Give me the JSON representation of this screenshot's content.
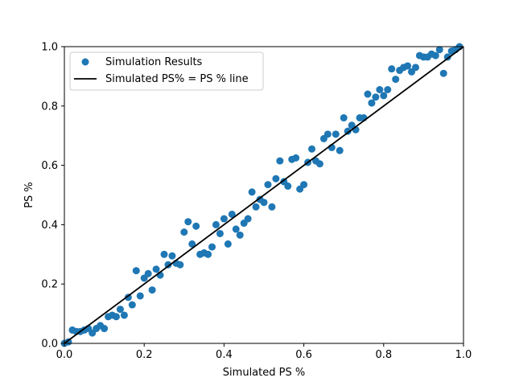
{
  "chart_data": {
    "type": "scatter",
    "title": "",
    "xlabel": "Simulated PS %",
    "ylabel": "PS %",
    "xlim": [
      0,
      1
    ],
    "ylim": [
      0,
      1
    ],
    "xticks": [
      "0.0",
      "0.2",
      "0.4",
      "0.6",
      "0.8",
      "1.0"
    ],
    "yticks": [
      "0.0",
      "0.2",
      "0.4",
      "0.6",
      "0.8",
      "1.0"
    ],
    "grid": false,
    "legend_position": "top-left",
    "colors": {
      "points": "#1f77b4",
      "line": "#000000"
    },
    "series": [
      {
        "name": "Simulation Results",
        "kind": "scatter",
        "points": [
          [
            0.0,
            0.0
          ],
          [
            0.01,
            0.005
          ],
          [
            0.02,
            0.045
          ],
          [
            0.03,
            0.04
          ],
          [
            0.04,
            0.04
          ],
          [
            0.05,
            0.045
          ],
          [
            0.06,
            0.05
          ],
          [
            0.07,
            0.035
          ],
          [
            0.08,
            0.05
          ],
          [
            0.09,
            0.06
          ],
          [
            0.1,
            0.05
          ],
          [
            0.11,
            0.09
          ],
          [
            0.12,
            0.095
          ],
          [
            0.13,
            0.09
          ],
          [
            0.14,
            0.115
          ],
          [
            0.15,
            0.095
          ],
          [
            0.16,
            0.155
          ],
          [
            0.17,
            0.13
          ],
          [
            0.18,
            0.245
          ],
          [
            0.19,
            0.16
          ],
          [
            0.2,
            0.22
          ],
          [
            0.21,
            0.235
          ],
          [
            0.22,
            0.18
          ],
          [
            0.23,
            0.25
          ],
          [
            0.24,
            0.23
          ],
          [
            0.25,
            0.3
          ],
          [
            0.26,
            0.265
          ],
          [
            0.27,
            0.295
          ],
          [
            0.28,
            0.27
          ],
          [
            0.29,
            0.265
          ],
          [
            0.3,
            0.375
          ],
          [
            0.31,
            0.41
          ],
          [
            0.32,
            0.335
          ],
          [
            0.33,
            0.395
          ],
          [
            0.34,
            0.3
          ],
          [
            0.35,
            0.305
          ],
          [
            0.36,
            0.3
          ],
          [
            0.37,
            0.325
          ],
          [
            0.38,
            0.4
          ],
          [
            0.39,
            0.37
          ],
          [
            0.4,
            0.42
          ],
          [
            0.41,
            0.335
          ],
          [
            0.42,
            0.435
          ],
          [
            0.43,
            0.385
          ],
          [
            0.44,
            0.365
          ],
          [
            0.45,
            0.405
          ],
          [
            0.46,
            0.42
          ],
          [
            0.47,
            0.51
          ],
          [
            0.48,
            0.46
          ],
          [
            0.49,
            0.485
          ],
          [
            0.5,
            0.475
          ],
          [
            0.51,
            0.535
          ],
          [
            0.52,
            0.46
          ],
          [
            0.53,
            0.555
          ],
          [
            0.54,
            0.615
          ],
          [
            0.55,
            0.545
          ],
          [
            0.56,
            0.53
          ],
          [
            0.57,
            0.62
          ],
          [
            0.58,
            0.625
          ],
          [
            0.59,
            0.52
          ],
          [
            0.6,
            0.535
          ],
          [
            0.61,
            0.61
          ],
          [
            0.62,
            0.655
          ],
          [
            0.63,
            0.615
          ],
          [
            0.64,
            0.605
          ],
          [
            0.65,
            0.69
          ],
          [
            0.66,
            0.705
          ],
          [
            0.67,
            0.66
          ],
          [
            0.68,
            0.705
          ],
          [
            0.69,
            0.65
          ],
          [
            0.7,
            0.76
          ],
          [
            0.71,
            0.715
          ],
          [
            0.72,
            0.735
          ],
          [
            0.73,
            0.72
          ],
          [
            0.74,
            0.76
          ],
          [
            0.75,
            0.76
          ],
          [
            0.76,
            0.84
          ],
          [
            0.77,
            0.81
          ],
          [
            0.78,
            0.83
          ],
          [
            0.79,
            0.855
          ],
          [
            0.8,
            0.835
          ],
          [
            0.81,
            0.855
          ],
          [
            0.82,
            0.925
          ],
          [
            0.83,
            0.89
          ],
          [
            0.84,
            0.92
          ],
          [
            0.85,
            0.93
          ],
          [
            0.86,
            0.935
          ],
          [
            0.87,
            0.915
          ],
          [
            0.88,
            0.93
          ],
          [
            0.89,
            0.97
          ],
          [
            0.9,
            0.965
          ],
          [
            0.91,
            0.965
          ],
          [
            0.92,
            0.975
          ],
          [
            0.93,
            0.97
          ],
          [
            0.94,
            0.99
          ],
          [
            0.95,
            0.91
          ],
          [
            0.96,
            0.965
          ],
          [
            0.97,
            0.985
          ],
          [
            0.98,
            0.99
          ],
          [
            0.99,
            1.0
          ]
        ]
      },
      {
        "name": "Simulated PS% = PS % line",
        "kind": "line",
        "points": [
          [
            0,
            0
          ],
          [
            1,
            1
          ]
        ]
      }
    ]
  }
}
